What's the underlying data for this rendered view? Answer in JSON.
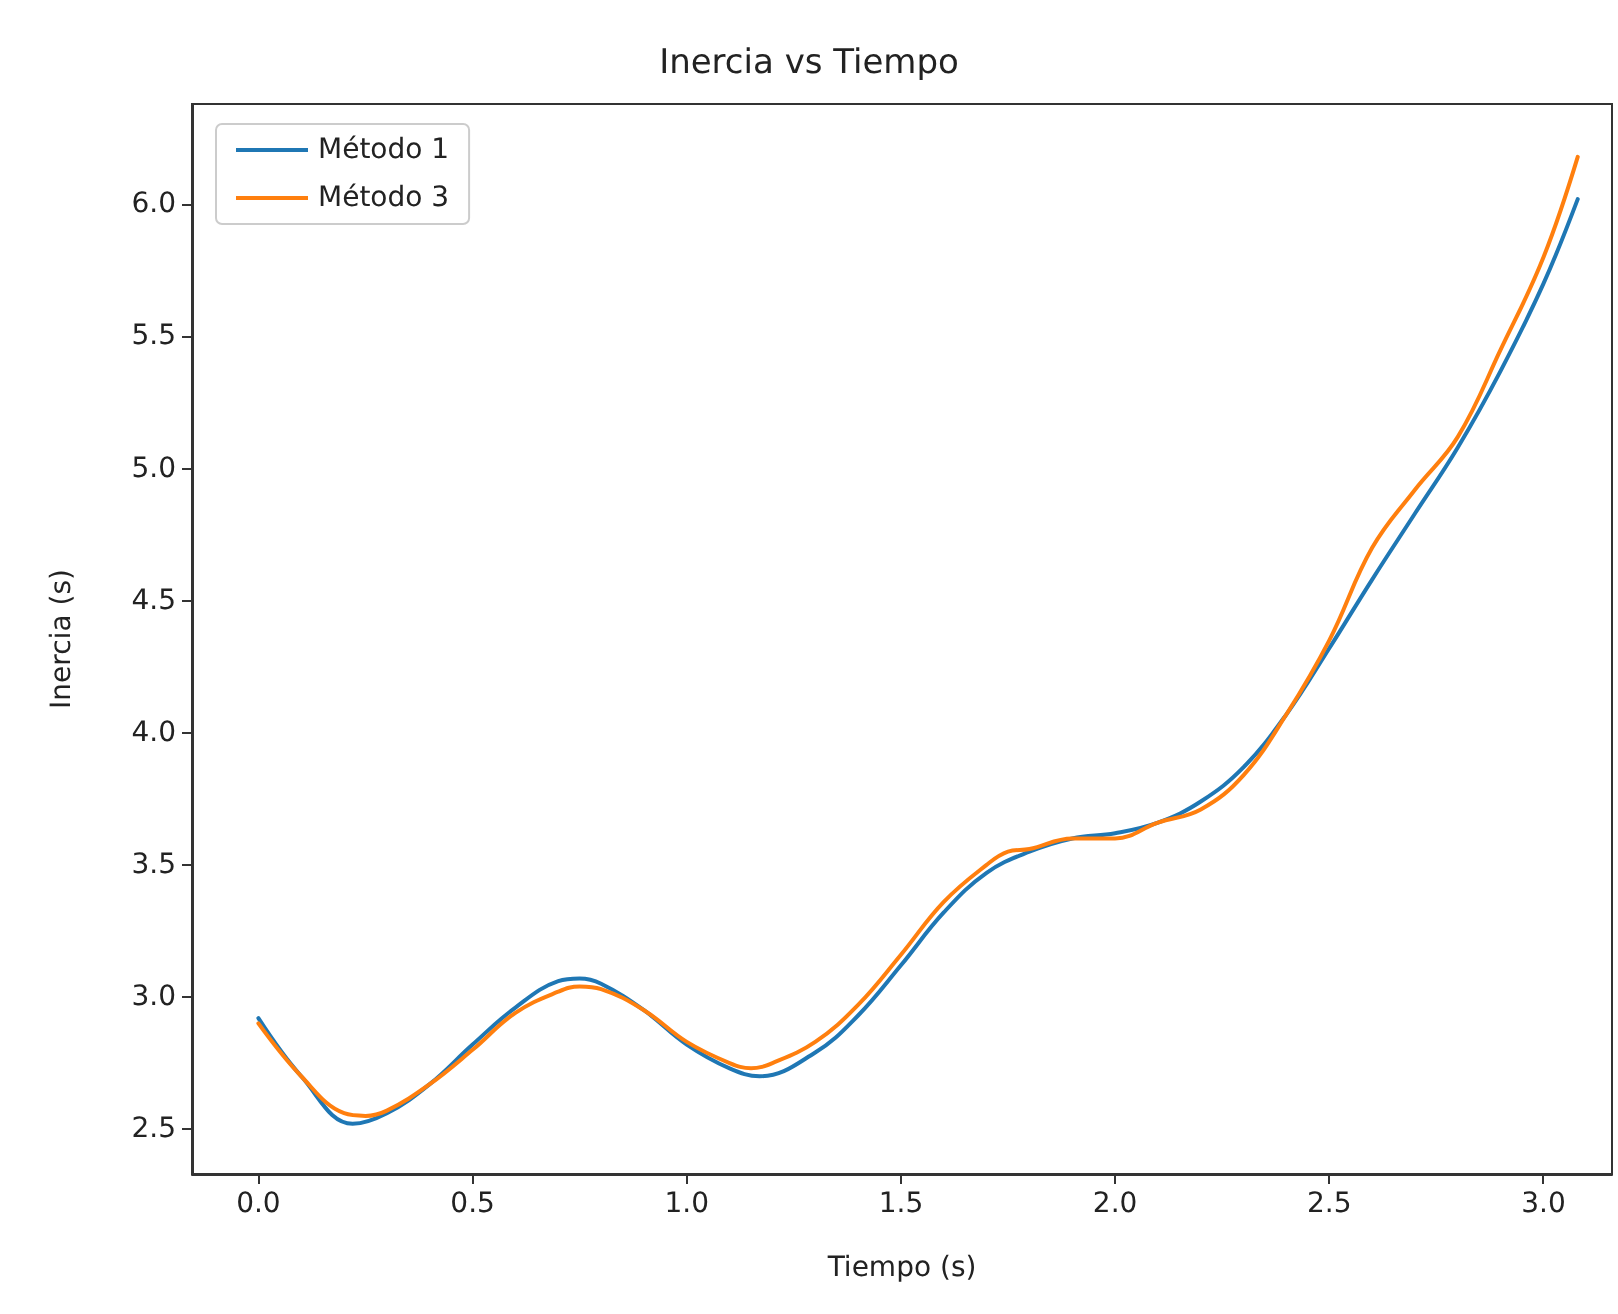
{
  "chart_data": {
    "type": "line",
    "title": "Inercia vs Tiempo",
    "xlabel": "Tiempo (s)",
    "ylabel": "Inercia (s)",
    "xlim": [
      -0.155,
      3.16
    ],
    "ylim": [
      2.33,
      6.38
    ],
    "xticks": [
      {
        "value": 0,
        "label": "0.0"
      },
      0.5,
      {
        "value": 1,
        "label": "1.0"
      },
      1.5,
      {
        "value": 2,
        "label": "2.0"
      },
      2.5,
      {
        "value": 3,
        "label": "3.0"
      }
    ],
    "yticks": [
      2.5,
      {
        "value": 3,
        "label": "3.0"
      },
      3.5,
      {
        "value": 4,
        "label": "4.0"
      },
      4.5,
      {
        "value": 5,
        "label": "5.0"
      },
      5.5,
      {
        "value": 6,
        "label": "6.0"
      }
    ],
    "grid": false,
    "legend": "top left",
    "marker": "none",
    "line_style": "solid",
    "series": [
      {
        "name": "Método 1",
        "color": "#1f77b4",
        "x": [
          0,
          0.1,
          0.22,
          0.3,
          0.4,
          0.5,
          0.6,
          0.7,
          0.75,
          0.8,
          0.9,
          1.0,
          1.1,
          1.17,
          1.3,
          1.4,
          1.5,
          1.6,
          1.7,
          1.8,
          1.9,
          2.0,
          2.1,
          2.2,
          2.3,
          2.4,
          2.5,
          2.6,
          2.7,
          2.8,
          2.9,
          3.0,
          3.08
        ],
        "values": [
          2.92,
          2.7,
          2.52,
          2.56,
          2.67,
          2.82,
          2.96,
          3.06,
          3.07,
          3.05,
          2.95,
          2.82,
          2.73,
          2.7,
          2.79,
          2.93,
          3.12,
          3.32,
          3.47,
          3.55,
          3.6,
          3.62,
          3.66,
          3.74,
          3.87,
          4.07,
          4.32,
          4.58,
          4.83,
          5.08,
          5.37,
          5.7,
          6.02
        ]
      },
      {
        "name": "Método 3",
        "color": "#ff7f0e",
        "x": [
          0,
          0.1,
          0.2,
          0.25,
          0.3,
          0.4,
          0.5,
          0.6,
          0.7,
          0.75,
          0.8,
          0.9,
          1.0,
          1.1,
          1.15,
          1.2,
          1.3,
          1.4,
          1.5,
          1.6,
          1.7,
          1.75,
          1.8,
          1.9,
          2.0,
          2.1,
          2.2,
          2.3,
          2.4,
          2.5,
          2.6,
          2.7,
          2.8,
          2.9,
          3.0,
          3.08
        ],
        "values": [
          2.9,
          2.7,
          2.56,
          2.55,
          2.57,
          2.67,
          2.8,
          2.94,
          3.02,
          3.04,
          3.03,
          2.95,
          2.83,
          2.75,
          2.73,
          2.75,
          2.83,
          2.97,
          3.16,
          3.36,
          3.5,
          3.55,
          3.56,
          3.6,
          3.6,
          3.66,
          3.71,
          3.84,
          4.07,
          4.35,
          4.7,
          4.92,
          5.12,
          5.45,
          5.8,
          6.18
        ]
      }
    ]
  }
}
